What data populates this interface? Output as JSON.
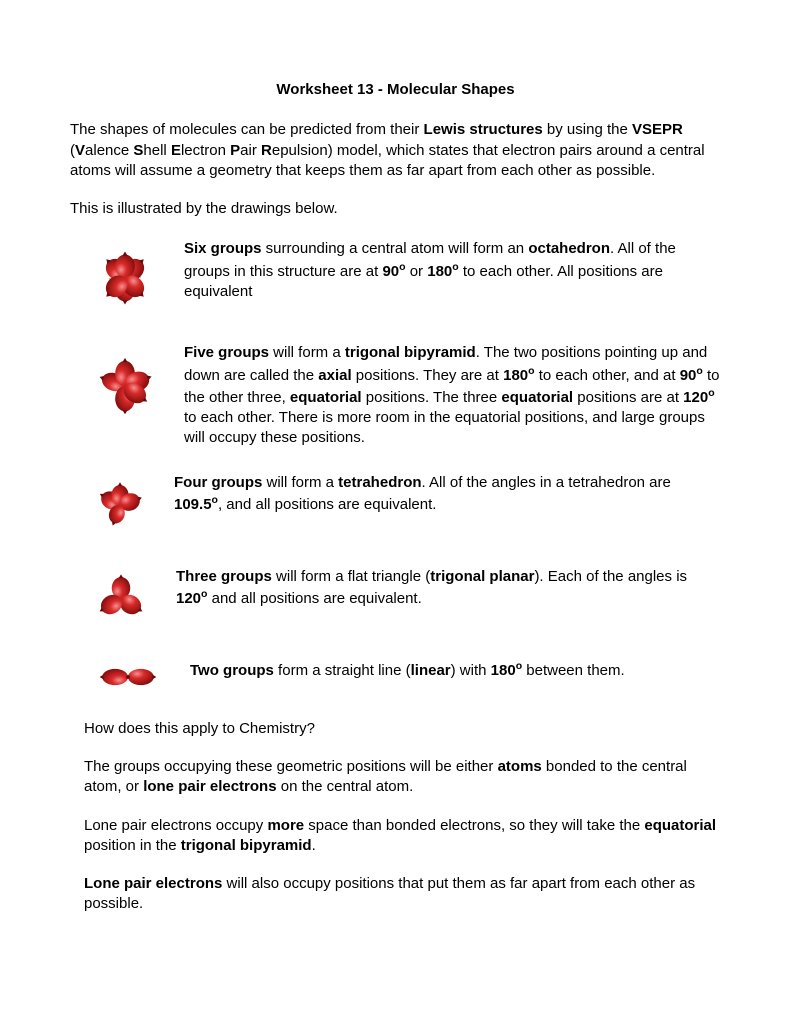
{
  "title": "Worksheet 13 - Molecular Shapes",
  "intro_html": "The shapes of molecules can be predicted from their <b>Lewis structures</b> by using the <b>VSEPR</b> (<b>V</b>alence <b>S</b>hell <b>E</b>lectron <b>P</b>air <b>R</b>epulsion) model, which states that electron pairs around a central atoms will assume a geometry that keeps them as far apart from each other as possible.",
  "illustrated": "This is illustrated by the drawings below.",
  "shapes": {
    "six_html": "<b>Six groups</b> surrounding a central atom will form an <b>octahedron</b>. All of the groups in this structure are at <b>90<sup>o</sup></b> or <b>180<sup>o</sup></b> to each other.  All positions are equivalent",
    "five_html": "<b>Five groups</b> will form a <b>trigonal bipyramid</b>.  The two positions pointing up and down are called the <b>axial</b> positions.  They are at <b>180<sup>o</sup></b> to each other, and at <b>90<sup>o</sup></b> to the other three, <b>equatorial</b> positions.  The three <b>equatorial</b> positions are at <b>120<sup>o</sup></b> to each other. There is more room in the equatorial positions, and large groups will occupy these positions.",
    "four_html": "<b>Four groups</b> will form a <b>tetrahedron</b>.  All of the angles in a tetrahedron are <b>109.5<sup>o</sup></b>, and all positions are equivalent.",
    "three_html": "<b>Three groups</b> will form a flat triangle (<b>trigonal planar</b>). Each of the angles is <b>120<sup>o</sup></b> and all positions are equivalent.",
    "two_html": "<b>Two groups</b> form a straight line (<b>linear</b>) with <b>180<sup>o</sup></b> between them."
  },
  "question": "How does this apply to Chemistry?",
  "groups_html": "The groups occupying these geometric positions will be either <b>atoms</b> bonded to the central atom, or <b>lone pair electrons</b> on the central atom.",
  "lonepair1_html": "Lone pair electrons occupy <b>more</b> space than bonded electrons, so they will take the <b>equatorial</b> position in the <b>trigonal bipyramid</b>.",
  "lonepair2_html": "<b>Lone pair electrons</b> will also occupy positions that put them as far apart from each other as possible.",
  "colors": {
    "balloon_fill": "#d82a2a",
    "balloon_highlight": "#f59090",
    "balloon_shadow": "#8a0f0f",
    "tie": "#6a0808"
  },
  "diagram_sizes": {
    "six": 82,
    "five": 82,
    "four": 72,
    "three": 74,
    "two_w": 88,
    "two_h": 40
  }
}
